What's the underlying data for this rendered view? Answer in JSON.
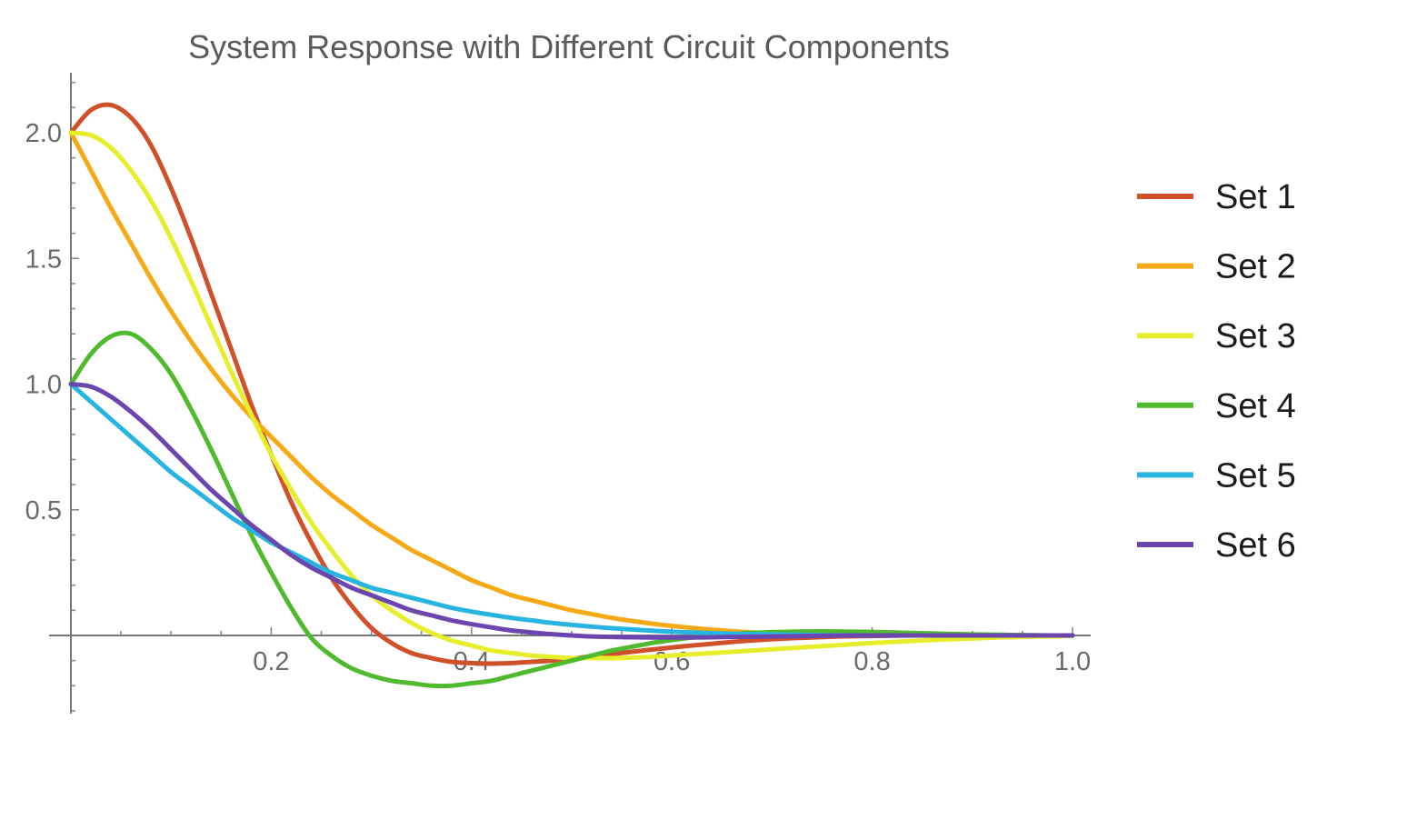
{
  "chart_data": {
    "type": "line",
    "title": "System Response with Different Circuit Components",
    "xlabel": "",
    "ylabel": "",
    "xlim": [
      0,
      1.0
    ],
    "ylim": [
      -0.31,
      2.24
    ],
    "x_ticks": [
      {
        "value": 0.2,
        "label": "0.2"
      },
      {
        "value": 0.4,
        "label": "0.4"
      },
      {
        "value": 0.6,
        "label": "0.6"
      },
      {
        "value": 0.8,
        "label": "0.8"
      },
      {
        "value": 1.0,
        "label": "1.0"
      }
    ],
    "y_ticks": [
      {
        "value": 0.5,
        "label": "0.5"
      },
      {
        "value": 1.0,
        "label": "1.0"
      },
      {
        "value": 1.5,
        "label": "1.5"
      },
      {
        "value": 2.0,
        "label": "2.0"
      }
    ],
    "grid": false,
    "legend_position": "right",
    "x": [
      0,
      0.02,
      0.04,
      0.06,
      0.08,
      0.1,
      0.12,
      0.14,
      0.16,
      0.18,
      0.2,
      0.22,
      0.24,
      0.26,
      0.28,
      0.3,
      0.32,
      0.34,
      0.36,
      0.38,
      0.4,
      0.42,
      0.44,
      0.46,
      0.48,
      0.5,
      0.52,
      0.54,
      0.56,
      0.58,
      0.6,
      0.62,
      0.64,
      0.66,
      0.68,
      0.7,
      0.72,
      0.74,
      0.76,
      0.78,
      0.8,
      0.82,
      0.84,
      0.86,
      0.88,
      0.9,
      0.92,
      0.94,
      0.96,
      0.98,
      1.0
    ],
    "series": [
      {
        "name": "Set 1",
        "color": "#d0502a",
        "values": [
          2.0,
          2.09,
          2.11,
          2.06,
          1.95,
          1.78,
          1.58,
          1.36,
          1.14,
          0.92,
          0.72,
          0.53,
          0.37,
          0.23,
          0.12,
          0.03,
          -0.03,
          -0.07,
          -0.09,
          -0.105,
          -0.11,
          -0.112,
          -0.11,
          -0.105,
          -0.1,
          -0.092,
          -0.083,
          -0.074,
          -0.065,
          -0.056,
          -0.048,
          -0.04,
          -0.033,
          -0.026,
          -0.02,
          -0.015,
          -0.011,
          -0.008,
          -0.005,
          -0.003,
          -0.002,
          -0.001,
          0.0,
          0.0,
          0.0,
          0.0,
          0.0,
          0.0,
          0.0,
          0.0,
          0.0
        ]
      },
      {
        "name": "Set 2",
        "color": "#f5a915",
        "values": [
          2.0,
          1.85,
          1.7,
          1.56,
          1.42,
          1.29,
          1.17,
          1.06,
          0.96,
          0.87,
          0.79,
          0.71,
          0.63,
          0.56,
          0.5,
          0.44,
          0.39,
          0.34,
          0.3,
          0.26,
          0.22,
          0.19,
          0.16,
          0.14,
          0.12,
          0.1,
          0.085,
          0.07,
          0.058,
          0.047,
          0.038,
          0.03,
          0.023,
          0.017,
          0.012,
          0.008,
          0.005,
          0.003,
          0.002,
          0.001,
          0.0,
          0.0,
          0.0,
          0.0,
          0.0,
          0.0,
          0.0,
          0.0,
          0.0,
          0.0,
          0.0
        ]
      },
      {
        "name": "Set 3",
        "color": "#e6ee2c",
        "values": [
          2.0,
          1.99,
          1.94,
          1.85,
          1.73,
          1.58,
          1.41,
          1.23,
          1.05,
          0.88,
          0.72,
          0.58,
          0.45,
          0.34,
          0.24,
          0.16,
          0.1,
          0.05,
          0.01,
          -0.02,
          -0.04,
          -0.06,
          -0.07,
          -0.08,
          -0.085,
          -0.09,
          -0.09,
          -0.09,
          -0.088,
          -0.085,
          -0.08,
          -0.075,
          -0.07,
          -0.065,
          -0.06,
          -0.055,
          -0.05,
          -0.045,
          -0.04,
          -0.035,
          -0.03,
          -0.026,
          -0.022,
          -0.018,
          -0.015,
          -0.012,
          -0.009,
          -0.007,
          -0.005,
          -0.003,
          -0.002
        ]
      },
      {
        "name": "Set 4",
        "color": "#4fba2e",
        "values": [
          1.0,
          1.12,
          1.19,
          1.2,
          1.14,
          1.04,
          0.9,
          0.74,
          0.57,
          0.4,
          0.25,
          0.11,
          -0.01,
          -0.08,
          -0.13,
          -0.16,
          -0.18,
          -0.19,
          -0.2,
          -0.2,
          -0.19,
          -0.18,
          -0.16,
          -0.14,
          -0.12,
          -0.1,
          -0.08,
          -0.06,
          -0.045,
          -0.03,
          -0.018,
          -0.008,
          0.0,
          0.006,
          0.01,
          0.013,
          0.015,
          0.016,
          0.016,
          0.015,
          0.014,
          0.012,
          0.01,
          0.008,
          0.006,
          0.004,
          0.003,
          0.002,
          0.001,
          0.0,
          0.0
        ]
      },
      {
        "name": "Set 5",
        "color": "#28b4e0",
        "values": [
          1.0,
          0.93,
          0.86,
          0.79,
          0.72,
          0.65,
          0.59,
          0.53,
          0.47,
          0.42,
          0.37,
          0.33,
          0.29,
          0.25,
          0.22,
          0.19,
          0.17,
          0.15,
          0.13,
          0.11,
          0.095,
          0.082,
          0.07,
          0.06,
          0.05,
          0.042,
          0.035,
          0.029,
          0.024,
          0.019,
          0.015,
          0.012,
          0.009,
          0.007,
          0.005,
          0.004,
          0.003,
          0.002,
          0.001,
          0.001,
          0.0,
          0.0,
          0.0,
          0.0,
          0.0,
          0.0,
          0.0,
          0.0,
          0.0,
          0.0,
          0.0
        ]
      },
      {
        "name": "Set 6",
        "color": "#6b46ae",
        "values": [
          1.0,
          0.99,
          0.95,
          0.89,
          0.82,
          0.74,
          0.66,
          0.58,
          0.51,
          0.44,
          0.38,
          0.32,
          0.27,
          0.23,
          0.19,
          0.16,
          0.13,
          0.1,
          0.08,
          0.06,
          0.045,
          0.032,
          0.02,
          0.012,
          0.005,
          0.0,
          -0.004,
          -0.006,
          -0.007,
          -0.008,
          -0.008,
          -0.008,
          -0.007,
          -0.006,
          -0.005,
          -0.004,
          -0.003,
          -0.002,
          -0.001,
          0.0,
          0.0,
          0.0,
          0.0,
          0.0,
          0.0,
          0.0,
          0.0,
          0.0,
          0.0,
          0.0,
          0.0
        ]
      }
    ]
  }
}
